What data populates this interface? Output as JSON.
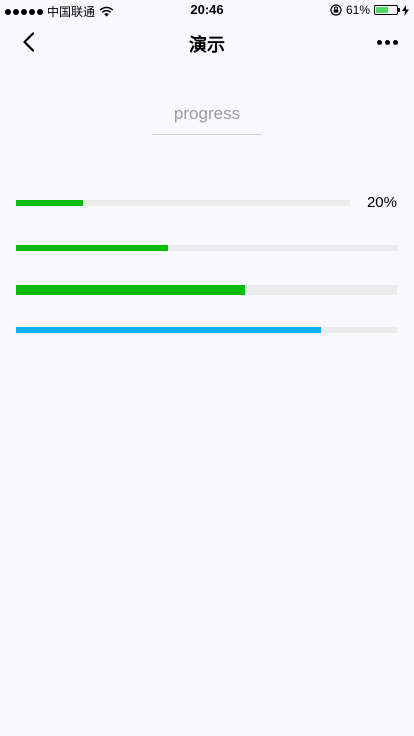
{
  "status_bar": {
    "carrier": "中国联通",
    "time": "20:46",
    "battery_percent": "61%",
    "battery_level": 0.61,
    "icons": [
      "signal-dots",
      "wifi-icon",
      "orientation-lock-icon",
      "battery-icon",
      "charging-bolt-icon"
    ]
  },
  "nav": {
    "title": "演示",
    "back_icon": "chevron-left-icon",
    "more_icon": "more-dots-icon"
  },
  "header": {
    "text": "progress"
  },
  "progress_bars": [
    {
      "percent": 20,
      "label": "20%",
      "color": "#09bb07",
      "track": "#ebebeb"
    },
    {
      "percent": 40,
      "label": "",
      "color": "#09bb07",
      "track": "#ebebeb"
    },
    {
      "percent": 60,
      "label": "",
      "color": "#09bb07",
      "track": "#ebebeb"
    },
    {
      "percent": 80,
      "label": "",
      "color": "#10aeff",
      "track": "#ebebeb"
    }
  ]
}
